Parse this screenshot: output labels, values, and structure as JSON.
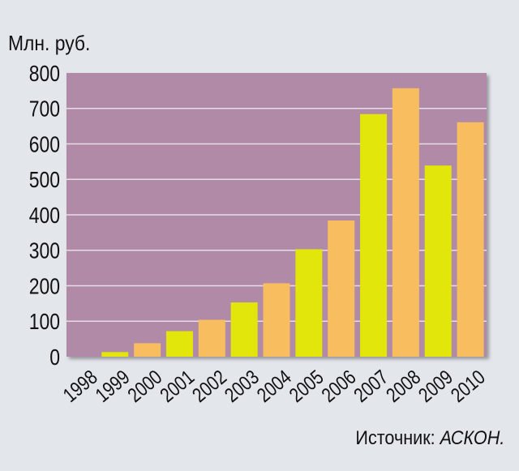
{
  "chart_data": {
    "type": "bar",
    "ylabel": "Млн. руб.",
    "categories": [
      "1998",
      "1999",
      "2000",
      "2001",
      "2002",
      "2003",
      "2004",
      "2005",
      "2006",
      "2007",
      "2008",
      "2009",
      "2010"
    ],
    "values": [
      0,
      13,
      38,
      72,
      104,
      153,
      207,
      303,
      384,
      684,
      757,
      539,
      661
    ],
    "ylim": [
      0,
      800
    ],
    "yticks": [
      0,
      100,
      200,
      300,
      400,
      500,
      600,
      700,
      800
    ],
    "grid": true,
    "colors": {
      "plot_background": "#b08aa6",
      "bar_yellow": "#e2e60a",
      "bar_orange": "#f7bd5f",
      "gridline": "#e6dde8"
    },
    "bar_color_pattern": [
      "bar_yellow",
      "bar_yellow",
      "bar_orange",
      "bar_yellow",
      "bar_orange",
      "bar_yellow",
      "bar_orange",
      "bar_yellow",
      "bar_orange",
      "bar_yellow",
      "bar_orange",
      "bar_yellow",
      "bar_orange"
    ]
  },
  "source": {
    "prefix": "Источник: ",
    "name": "АСКОН."
  }
}
